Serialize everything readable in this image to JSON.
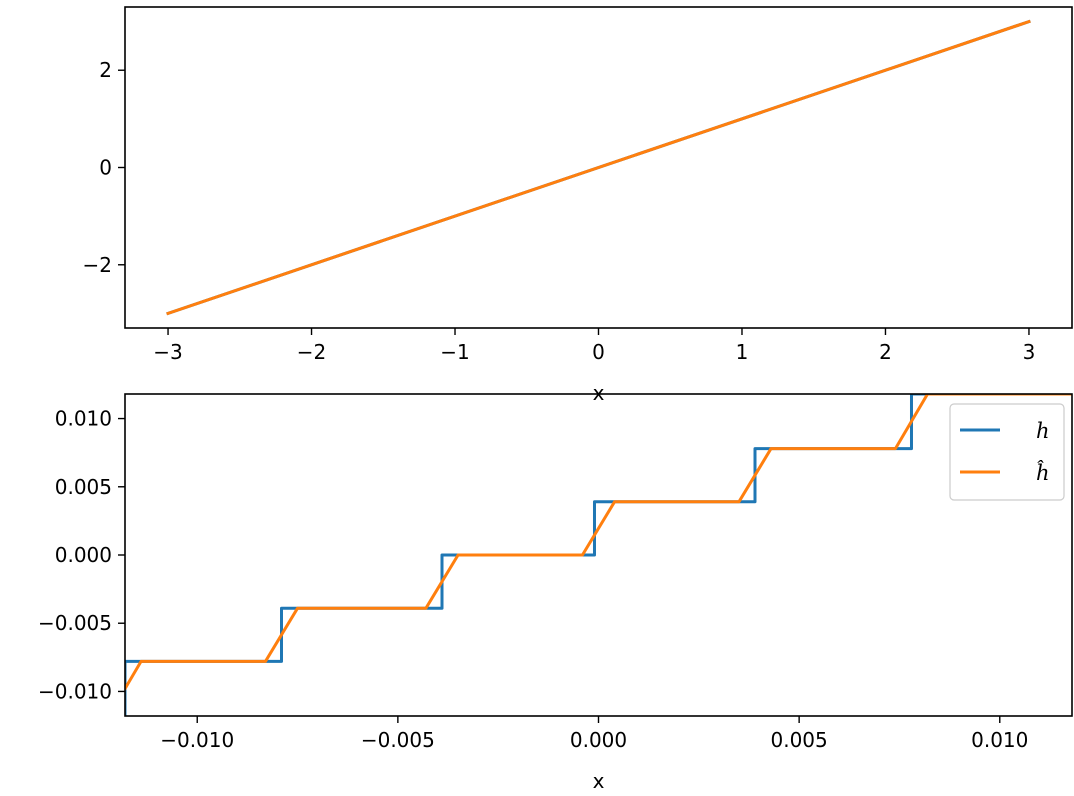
{
  "chart_data": [
    {
      "type": "line",
      "xlabel": "x",
      "ylabel": "",
      "xlim": [
        -3.3,
        3.3
      ],
      "ylim": [
        -3.3,
        3.3
      ],
      "xticks": [
        -3,
        -2,
        -1,
        0,
        1,
        2,
        3
      ],
      "xtick_labels": [
        "−3",
        "−2",
        "−1",
        "0",
        "1",
        "2",
        "3"
      ],
      "yticks": [
        -2,
        0,
        2
      ],
      "ytick_labels": [
        "−2",
        "0",
        "2"
      ],
      "grid": false,
      "series": [
        {
          "color": "#1f77b4",
          "x": [
            -3,
            3
          ],
          "y": [
            -3,
            3
          ]
        },
        {
          "color": "#ff7f0e",
          "x": [
            -3,
            3
          ],
          "y": [
            -3,
            3
          ]
        }
      ]
    },
    {
      "type": "line",
      "xlabel": "x",
      "ylabel": "",
      "xlim": [
        -0.0118,
        0.0118
      ],
      "ylim": [
        -0.0118,
        0.0118
      ],
      "xticks": [
        -0.01,
        -0.005,
        0.0,
        0.005,
        0.01
      ],
      "xtick_labels": [
        "−0.010",
        "−0.005",
        "0.000",
        "0.005",
        "0.010"
      ],
      "yticks": [
        -0.01,
        -0.005,
        0.0,
        0.005,
        0.01
      ],
      "ytick_labels": [
        "−0.010",
        "−0.005",
        "0.000",
        "0.005",
        "0.010"
      ],
      "grid": false,
      "legend": {
        "position": "top-right",
        "labels": [
          "h",
          "ĥ"
        ]
      },
      "series": [
        {
          "name": "h",
          "color": "#1f77b4",
          "x": [
            -0.0118,
            -0.0118,
            -0.0079,
            -0.0079,
            -0.0039,
            -0.0039,
            -0.0001,
            -0.0001,
            0.0039,
            0.0039,
            0.0078,
            0.0078,
            0.0118
          ],
          "y": [
            -0.0118,
            -0.0078,
            -0.0078,
            -0.0039,
            -0.0039,
            0.0,
            0.0,
            0.0039,
            0.0039,
            0.0078,
            0.0078,
            0.0118,
            0.0118
          ]
        },
        {
          "name": "ĥ",
          "color": "#ff7f0e",
          "x": [
            -0.0118,
            -0.0114,
            -0.0083,
            -0.0075,
            -0.0043,
            -0.0035,
            -0.0004,
            0.0004,
            0.0035,
            0.0043,
            0.0074,
            0.0082,
            0.0118
          ],
          "y": [
            -0.0098,
            -0.0078,
            -0.0078,
            -0.0039,
            -0.0039,
            0.0,
            0.0,
            0.0039,
            0.0039,
            0.0078,
            0.0078,
            0.0118,
            0.0118
          ]
        }
      ]
    }
  ]
}
